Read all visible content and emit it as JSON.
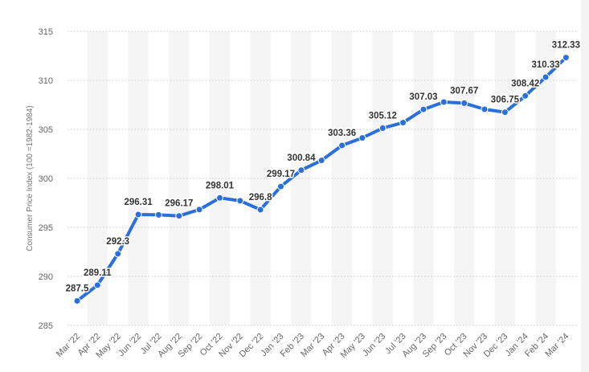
{
  "colors": {
    "line": "#2a6fdb",
    "band": "#f5f5f5",
    "grid": "#c8c8c8",
    "label": "#333333",
    "axis_text": "#666666"
  },
  "chart_data": {
    "type": "line",
    "title": "",
    "xlabel": "",
    "ylabel": "Consumer Price Index (100 =1982-1984)",
    "ylim": [
      285,
      315
    ],
    "yticks": [
      285,
      290,
      295,
      300,
      305,
      310,
      315
    ],
    "grid": true,
    "legend": "none",
    "categories": [
      "Mar '22",
      "Apr '22",
      "May '22",
      "Jun '22",
      "Jul '22",
      "Aug '22",
      "Sep '22",
      "Oct '22",
      "Nov '22",
      "Dec '22",
      "Jan '23",
      "Feb '23",
      "Mar '23",
      "Apr '23",
      "May '23",
      "Jun '23",
      "Jul '23",
      "Aug '23",
      "Sep '23",
      "Oct '23",
      "Nov '23",
      "Dec '23",
      "Jan '24",
      "Feb '24",
      "Mar '24"
    ],
    "values": [
      287.5,
      289.11,
      292.3,
      296.31,
      296.28,
      296.17,
      296.81,
      298.01,
      297.71,
      296.8,
      299.17,
      300.84,
      301.84,
      303.36,
      304.13,
      305.12,
      305.69,
      307.03,
      307.79,
      307.67,
      307.05,
      306.75,
      308.42,
      310.33,
      312.33
    ],
    "data_labels": [
      {
        "index": 0,
        "text": "287.5"
      },
      {
        "index": 1,
        "text": "289.11"
      },
      {
        "index": 2,
        "text": "292.3"
      },
      {
        "index": 3,
        "text": "296.31"
      },
      {
        "index": 5,
        "text": "296.17"
      },
      {
        "index": 7,
        "text": "298.01"
      },
      {
        "index": 9,
        "text": "296.8"
      },
      {
        "index": 10,
        "text": "299.17"
      },
      {
        "index": 11,
        "text": "300.84"
      },
      {
        "index": 13,
        "text": "303.36"
      },
      {
        "index": 15,
        "text": "305.12"
      },
      {
        "index": 17,
        "text": "307.03"
      },
      {
        "index": 19,
        "text": "307.67"
      },
      {
        "index": 21,
        "text": "306.75"
      },
      {
        "index": 22,
        "text": "308.42"
      },
      {
        "index": 23,
        "text": "310.33"
      },
      {
        "index": 24,
        "text": "312.33"
      }
    ]
  }
}
